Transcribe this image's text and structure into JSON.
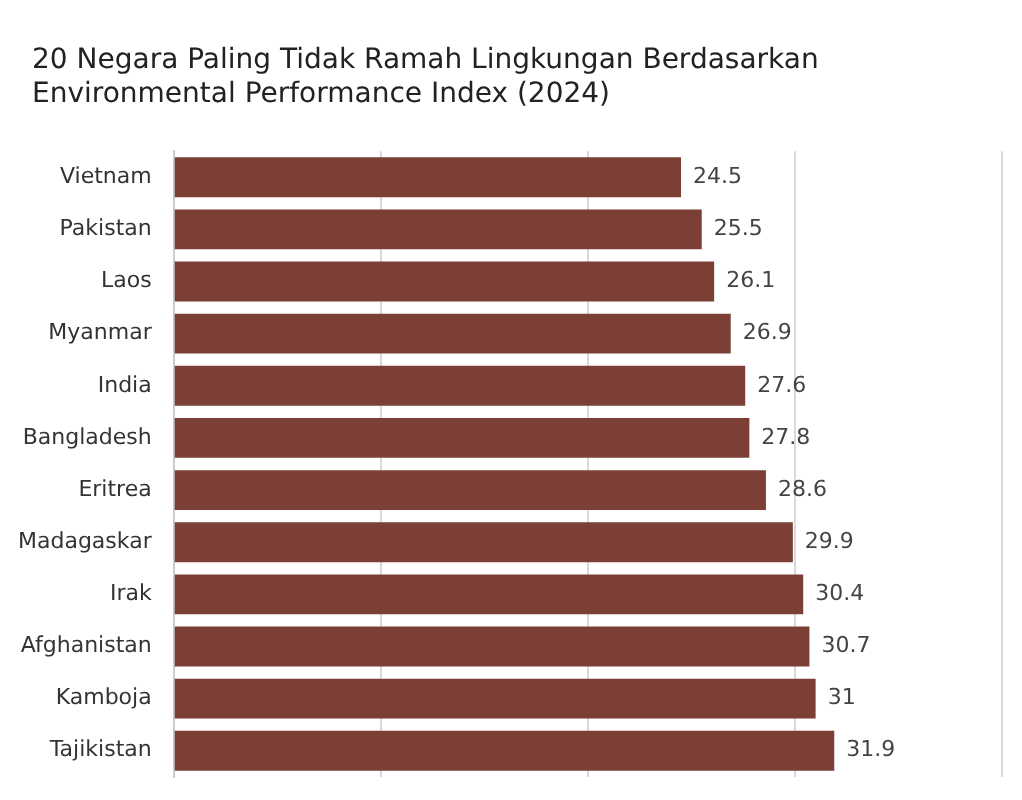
{
  "chart_data": {
    "type": "bar",
    "orientation": "horizontal",
    "title": "20 Negara Paling Tidak Ramah Lingkungan Berdasarkan Environmental Performance Index (2024)",
    "categories": [
      "Vietnam",
      "Pakistan",
      "Laos",
      "Myanmar",
      "India",
      "Bangladesh",
      "Eritrea",
      "Madagaskar",
      "Irak",
      "Afghanistan",
      "Kamboja",
      "Tajikistan"
    ],
    "values": [
      24.5,
      25.5,
      26.1,
      26.9,
      27.6,
      27.8,
      28.6,
      29.9,
      30.4,
      30.7,
      31,
      31.9
    ],
    "color": "#7b3f36",
    "xlim": [
      0,
      40
    ],
    "xticks": [
      {
        "value": 0,
        "label": null
      },
      {
        "value": 10,
        "label": null
      },
      {
        "value": 20,
        "label": null
      },
      {
        "value": 30,
        "label": null
      },
      {
        "value": 40,
        "label": null
      }
    ],
    "tick_labels": "y",
    "grid": "x",
    "data_labels": true
  }
}
